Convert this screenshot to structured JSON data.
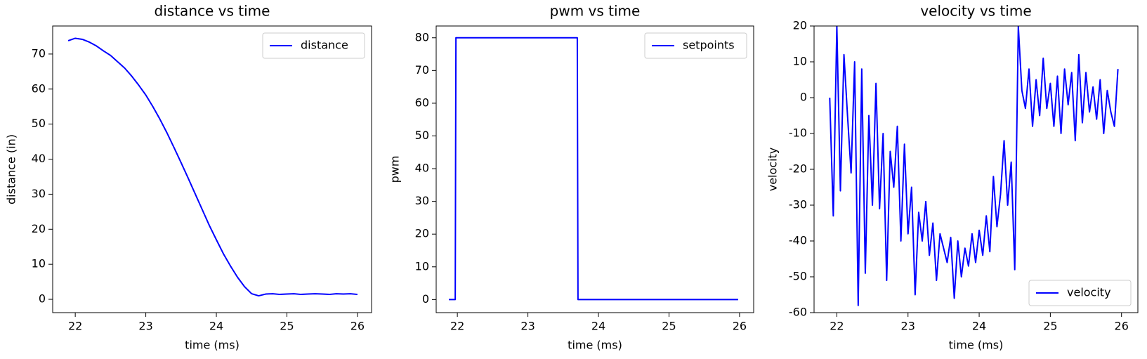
{
  "chart_data": [
    {
      "type": "line",
      "title": "distance vs time",
      "xlabel": "time (ms)",
      "ylabel": "distance (in)",
      "x": [
        21.9,
        22.0,
        22.1,
        22.2,
        22.3,
        22.4,
        22.5,
        22.6,
        22.7,
        22.8,
        22.9,
        23.0,
        23.1,
        23.2,
        23.3,
        23.4,
        23.5,
        23.6,
        23.7,
        23.8,
        23.9,
        24.0,
        24.1,
        24.2,
        24.3,
        24.4,
        24.5,
        24.6,
        24.7,
        24.8,
        24.9,
        25.0,
        25.1,
        25.2,
        25.3,
        25.4,
        25.5,
        25.6,
        25.7,
        25.8,
        25.9,
        26.0
      ],
      "series": [
        {
          "name": "distance",
          "color": "#0000ff",
          "values": [
            73.8,
            74.5,
            74.2,
            73.4,
            72.3,
            70.9,
            69.6,
            67.8,
            66.0,
            63.7,
            61.1,
            58.3,
            55.0,
            51.4,
            47.5,
            43.3,
            39.0,
            34.6,
            30.1,
            25.6,
            21.1,
            17.0,
            13.0,
            9.5,
            6.3,
            3.6,
            1.6,
            1.0,
            1.5,
            1.6,
            1.4,
            1.5,
            1.6,
            1.4,
            1.5,
            1.6,
            1.5,
            1.4,
            1.6,
            1.5,
            1.6,
            1.4
          ]
        }
      ],
      "xlim": [
        21.68,
        26.2
      ],
      "ylim": [
        -3.8,
        78
      ],
      "xticks": [
        22,
        23,
        24,
        25,
        26
      ],
      "yticks": [
        0,
        10,
        20,
        30,
        40,
        50,
        60,
        70
      ],
      "legend": "upper right"
    },
    {
      "type": "line",
      "title": "pwm vs time",
      "xlabel": "time (ms)",
      "ylabel": "pwm",
      "x": [
        21.88,
        21.97,
        21.98,
        23.7,
        23.71,
        25.98
      ],
      "series": [
        {
          "name": "setpoints",
          "color": "#0000ff",
          "values": [
            0,
            0,
            80,
            80,
            0,
            0
          ]
        }
      ],
      "xlim": [
        21.7,
        26.2
      ],
      "ylim": [
        -4,
        83.6
      ],
      "xticks": [
        22,
        23,
        24,
        25,
        26
      ],
      "yticks": [
        0,
        10,
        20,
        30,
        40,
        50,
        60,
        70,
        80
      ],
      "legend": "upper right"
    },
    {
      "type": "line",
      "title": "velocity vs time",
      "xlabel": "time (ms)",
      "ylabel": "velocity",
      "x": [
        21.9,
        21.95,
        22.0,
        22.05,
        22.1,
        22.15,
        22.2,
        22.25,
        22.3,
        22.35,
        22.4,
        22.45,
        22.5,
        22.55,
        22.6,
        22.65,
        22.7,
        22.75,
        22.8,
        22.85,
        22.9,
        22.95,
        23.0,
        23.05,
        23.1,
        23.15,
        23.2,
        23.25,
        23.3,
        23.35,
        23.4,
        23.45,
        23.5,
        23.55,
        23.6,
        23.65,
        23.7,
        23.75,
        23.8,
        23.85,
        23.9,
        23.95,
        24.0,
        24.05,
        24.1,
        24.15,
        24.2,
        24.25,
        24.3,
        24.35,
        24.4,
        24.45,
        24.5,
        24.55,
        24.6,
        24.65,
        24.7,
        24.75,
        24.8,
        24.85,
        24.9,
        24.95,
        25.0,
        25.05,
        25.1,
        25.15,
        25.2,
        25.25,
        25.3,
        25.35,
        25.4,
        25.45,
        25.5,
        25.55,
        25.6,
        25.65,
        25.7,
        25.75,
        25.8,
        25.85,
        25.9,
        25.95
      ],
      "series": [
        {
          "name": "velocity",
          "color": "#0000ff",
          "values": [
            0,
            -33,
            20,
            -26,
            12,
            -5,
            -21,
            10,
            -58,
            8,
            -49,
            -5,
            -30,
            4,
            -31,
            -10,
            -51,
            -15,
            -25,
            -8,
            -40,
            -13,
            -38,
            -25,
            -55,
            -32,
            -40,
            -29,
            -44,
            -35,
            -51,
            -38,
            -42,
            -46,
            -39,
            -56,
            -40,
            -50,
            -42,
            -47,
            -38,
            -46,
            -37,
            -44,
            -33,
            -43,
            -22,
            -36,
            -27,
            -12,
            -30,
            -18,
            -48,
            20,
            2,
            -3,
            8,
            -8,
            5,
            -5,
            11,
            -3,
            4,
            -8,
            6,
            -10,
            8,
            -2,
            7,
            -12,
            12,
            -7,
            7,
            -4,
            3,
            -6,
            5,
            -10,
            2,
            -4,
            -8,
            8
          ]
        }
      ],
      "xlim": [
        21.68,
        26.23
      ],
      "ylim": [
        -60,
        20
      ],
      "xticks": [
        22,
        23,
        24,
        25,
        26
      ],
      "yticks": [
        -60,
        -50,
        -40,
        -30,
        -20,
        -10,
        0,
        10,
        20
      ],
      "legend": "lower right"
    }
  ]
}
